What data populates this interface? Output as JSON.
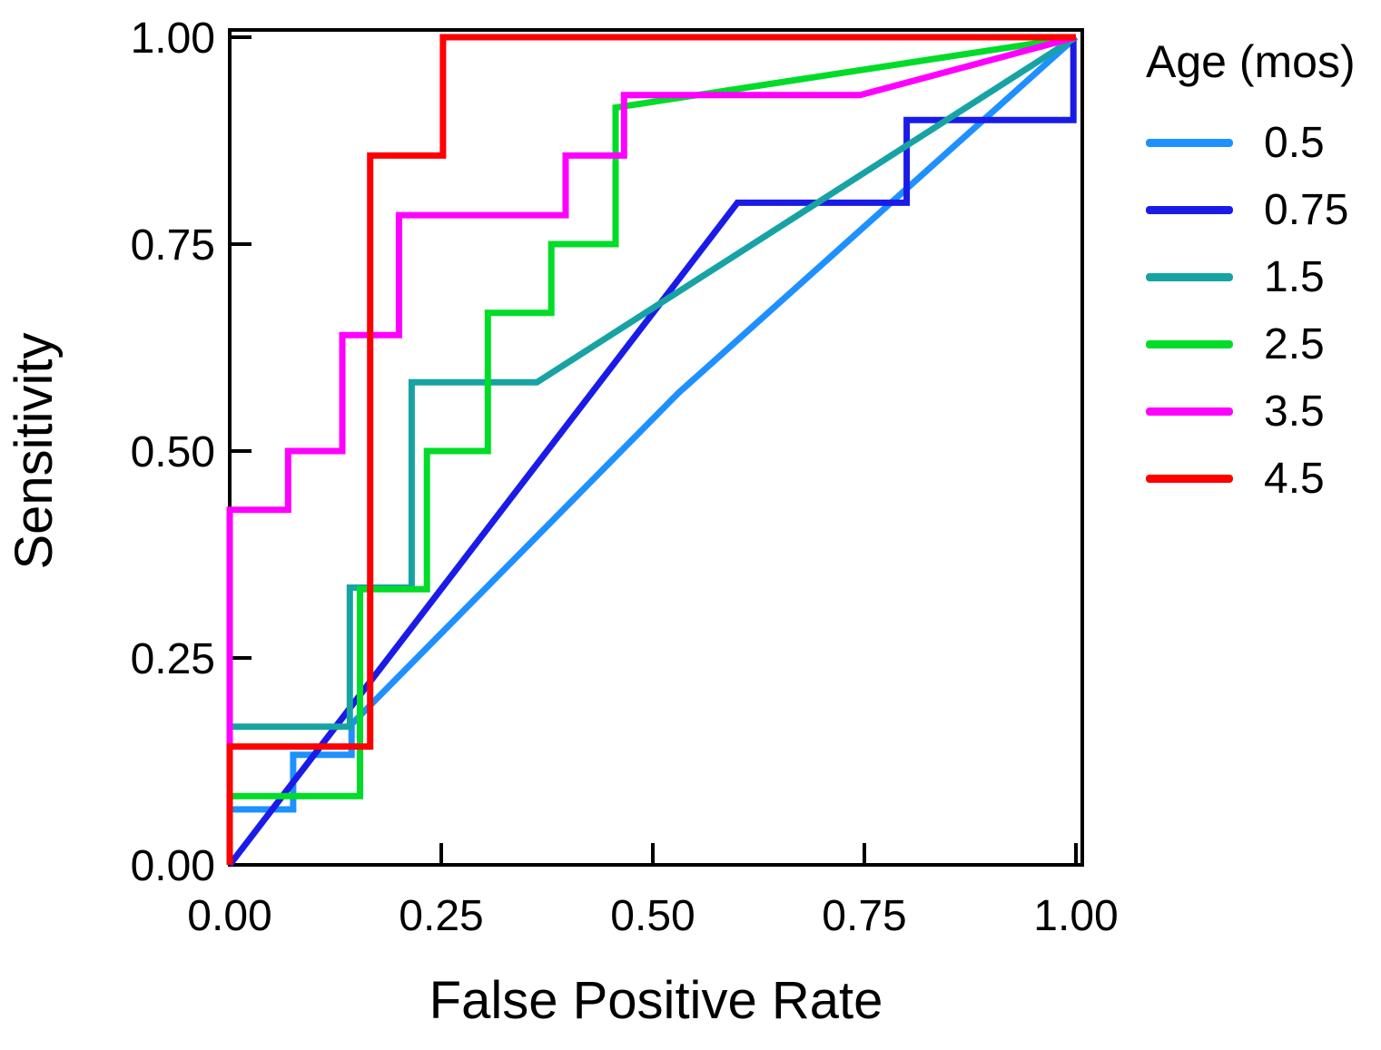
{
  "chart_data": {
    "type": "line",
    "chart_kind": "roc-step-curves",
    "title": "",
    "xlabel": "False Positive Rate",
    "ylabel": "Sensitivity",
    "xlim": [
      0,
      1
    ],
    "ylim": [
      0,
      1
    ],
    "grid": false,
    "frame_color": "#000000",
    "x_tick_values": [
      0,
      0.25,
      0.5,
      0.75,
      1
    ],
    "x_tick_labels": [
      "0.00",
      "0.25",
      "0.50",
      "0.75",
      "1.00"
    ],
    "y_tick_values": [
      0,
      0.25,
      0.5,
      0.75,
      1
    ],
    "y_tick_labels": [
      "0.00",
      "0.25",
      "0.50",
      "0.75",
      "1.00"
    ],
    "legend": {
      "title": "Age (mos)",
      "position": "right",
      "entries": [
        "0.5",
        "0.75",
        "1.5",
        "2.5",
        "3.5",
        "4.5"
      ]
    },
    "series": [
      {
        "name": "0.5",
        "color": "#1E90FF",
        "points": [
          [
            0,
            0
          ],
          [
            0,
            0.067
          ],
          [
            0.075,
            0.067
          ],
          [
            0.075,
            0.133
          ],
          [
            0.144,
            0.133
          ],
          [
            0.144,
            0.17
          ],
          [
            0.53,
            0.57
          ],
          [
            1,
            1
          ]
        ]
      },
      {
        "name": "0.75",
        "color": "#1B1BE8",
        "points": [
          [
            0,
            0
          ],
          [
            0.6,
            0.8
          ],
          [
            0.8,
            0.8
          ],
          [
            0.8,
            0.9
          ],
          [
            0.997,
            0.9
          ],
          [
            0.997,
            1
          ]
        ]
      },
      {
        "name": "1.5",
        "color": "#17A3A3",
        "points": [
          [
            0,
            0
          ],
          [
            0,
            0.167
          ],
          [
            0.142,
            0.167
          ],
          [
            0.142,
            0.335
          ],
          [
            0.215,
            0.335
          ],
          [
            0.215,
            0.583
          ],
          [
            0.363,
            0.583
          ],
          [
            1,
            1
          ]
        ]
      },
      {
        "name": "2.5",
        "color": "#00DC28",
        "points": [
          [
            0,
            0
          ],
          [
            0,
            0.083
          ],
          [
            0.154,
            0.083
          ],
          [
            0.154,
            0.333
          ],
          [
            0.233,
            0.333
          ],
          [
            0.233,
            0.5
          ],
          [
            0.305,
            0.5
          ],
          [
            0.305,
            0.667
          ],
          [
            0.38,
            0.667
          ],
          [
            0.38,
            0.75
          ],
          [
            0.456,
            0.75
          ],
          [
            0.456,
            0.915
          ],
          [
            1,
            1
          ]
        ]
      },
      {
        "name": "3.5",
        "color": "#FF00FF",
        "points": [
          [
            0,
            0
          ],
          [
            0,
            0.429
          ],
          [
            0.069,
            0.429
          ],
          [
            0.069,
            0.5
          ],
          [
            0.133,
            0.5
          ],
          [
            0.133,
            0.64
          ],
          [
            0.2,
            0.64
          ],
          [
            0.2,
            0.785
          ],
          [
            0.397,
            0.785
          ],
          [
            0.397,
            0.857
          ],
          [
            0.466,
            0.857
          ],
          [
            0.466,
            0.93
          ],
          [
            0.745,
            0.93
          ],
          [
            1,
            1
          ]
        ]
      },
      {
        "name": "4.5",
        "color": "#FF0000",
        "points": [
          [
            0,
            0
          ],
          [
            0,
            0.143
          ],
          [
            0.166,
            0.143
          ],
          [
            0.166,
            0.857
          ],
          [
            0.252,
            0.857
          ],
          [
            0.252,
            1
          ],
          [
            1,
            1
          ]
        ]
      }
    ]
  }
}
